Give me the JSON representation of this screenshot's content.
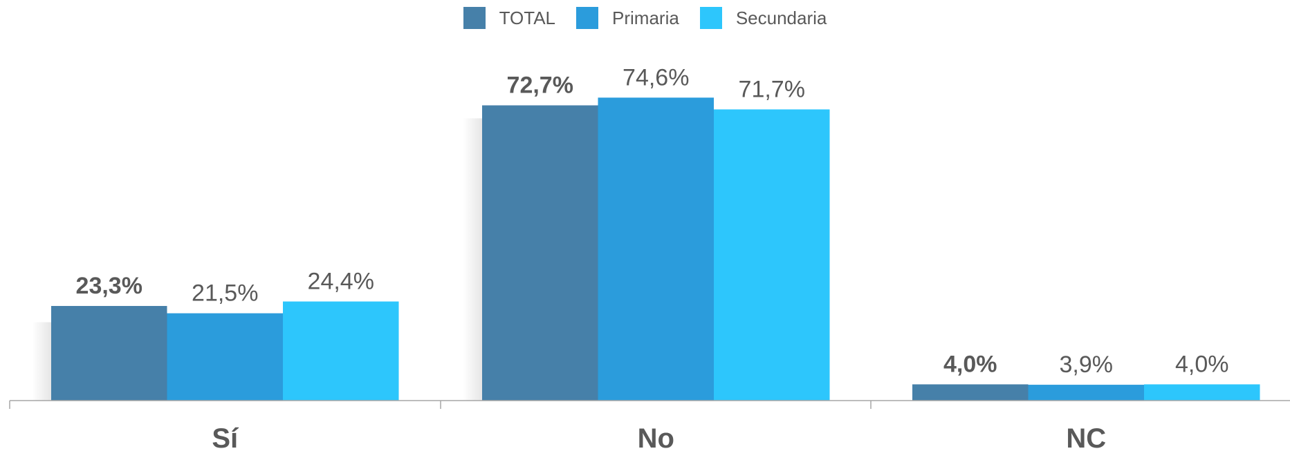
{
  "chart_data": {
    "type": "bar",
    "categories": [
      "Sí",
      "No",
      "NC"
    ],
    "series": [
      {
        "name": "TOTAL",
        "values": [
          23.3,
          72.7,
          4.0
        ],
        "labels": [
          "23,3%",
          "72,7%",
          "4,0%"
        ],
        "color": "#4680A9",
        "label_bold": true
      },
      {
        "name": "Primaria",
        "values": [
          21.5,
          74.6,
          3.9
        ],
        "labels": [
          "21,5%",
          "74,6%",
          "3,9%"
        ],
        "color": "#2B9CDC",
        "label_bold": false
      },
      {
        "name": "Secundaria",
        "values": [
          24.4,
          71.7,
          4.0
        ],
        "labels": [
          "24,4%",
          "71,7%",
          "4,0%"
        ],
        "color": "#2DC6FC",
        "label_bold": false
      }
    ],
    "ylim": [
      0,
      80
    ],
    "grid": false,
    "legend_position": "top-center",
    "label_color": "#595959",
    "axis_color": "#a6a6a6"
  }
}
